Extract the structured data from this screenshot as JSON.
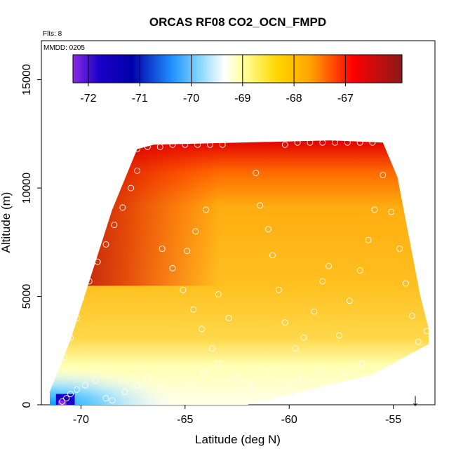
{
  "chart_data": {
    "type": "heatmap",
    "title": "ORCAS RF08 CO2_OCN_FMPD",
    "subtitle_flights": "Flts: 8",
    "subtitle_date": "MMDD: 0205",
    "xlabel": "Latitude (deg N)",
    "ylabel": "Altitude (m)",
    "xlim": [
      -71.9,
      -53.0
    ],
    "ylim": [
      0,
      16800
    ],
    "x_ticks": [
      "-70",
      "-65",
      "-60",
      "-55"
    ],
    "x_tick_values": [
      -70,
      -65,
      -60,
      -55
    ],
    "y_ticks": [
      "0",
      "5000",
      "10000",
      "15000"
    ],
    "y_tick_values": [
      0,
      5000,
      10000,
      15000
    ],
    "colorbar": {
      "range": [
        -72.3,
        -65.9
      ],
      "ticks": [
        "-72",
        "-71",
        "-70",
        "-69",
        "-68",
        "-67"
      ],
      "tick_values": [
        -72,
        -71,
        -70,
        -69,
        -68,
        -67
      ],
      "colors": [
        "#8a2be2",
        "#0000aa",
        "#1e90ff",
        "#00bfff",
        "#ffffff",
        "#ffff99",
        "#ffd700",
        "#ffa500",
        "#ff0000",
        "#8b1a1a"
      ]
    },
    "annotation": "↓",
    "field": {
      "lat_range": [
        -71.5,
        -53.3
      ],
      "alt_range": [
        0,
        12200
      ],
      "envelope_top": [
        {
          "lat": -71.5,
          "alt": 600
        },
        {
          "lat": -70.5,
          "alt": 3000
        },
        {
          "lat": -69.5,
          "alt": 6000
        },
        {
          "lat": -68.5,
          "alt": 9000
        },
        {
          "lat": -67.3,
          "alt": 11800
        },
        {
          "lat": -66.5,
          "alt": 12000
        },
        {
          "lat": -58,
          "alt": 12200
        },
        {
          "lat": -55.5,
          "alt": 12100
        },
        {
          "lat": -54.8,
          "alt": 10500
        },
        {
          "lat": -54.3,
          "alt": 8000
        },
        {
          "lat": -53.7,
          "alt": 5000
        },
        {
          "lat": -53.3,
          "alt": 3500
        }
      ],
      "envelope_bottom": [
        {
          "lat": -71.5,
          "alt": 0
        },
        {
          "lat": -62,
          "alt": 0
        },
        {
          "lat": -56,
          "alt": 1400
        },
        {
          "lat": -53.3,
          "alt": 2800
        }
      ]
    },
    "flight_points": [
      {
        "lat": -70.9,
        "alt": 150
      },
      {
        "lat": -70.7,
        "alt": 300
      },
      {
        "lat": -70.5,
        "alt": 500
      },
      {
        "lat": -70.2,
        "alt": 700
      },
      {
        "lat": -69.8,
        "alt": 900
      },
      {
        "lat": -69.3,
        "alt": 1100
      },
      {
        "lat": -68.8,
        "alt": 300
      },
      {
        "lat": -68.5,
        "alt": 200
      },
      {
        "lat": -67.9,
        "alt": 600
      },
      {
        "lat": -67.3,
        "alt": 900
      },
      {
        "lat": -66.8,
        "alt": 1200
      },
      {
        "lat": -66.2,
        "alt": 800
      },
      {
        "lat": -65.4,
        "alt": 600
      },
      {
        "lat": -64.7,
        "alt": 1000
      },
      {
        "lat": -64.1,
        "alt": 1500
      },
      {
        "lat": -63.4,
        "alt": 1900
      },
      {
        "lat": -62.6,
        "alt": 1300
      },
      {
        "lat": -61.8,
        "alt": 900
      },
      {
        "lat": -60.9,
        "alt": 1600
      },
      {
        "lat": -60.1,
        "alt": 900
      },
      {
        "lat": -59.4,
        "alt": 1200
      },
      {
        "lat": -58.6,
        "alt": 1600
      },
      {
        "lat": -57.9,
        "alt": 900
      },
      {
        "lat": -57.3,
        "alt": 1500
      },
      {
        "lat": -56.5,
        "alt": 1900
      },
      {
        "lat": -55.8,
        "alt": 1300
      },
      {
        "lat": -70.8,
        "alt": 2200
      },
      {
        "lat": -70.5,
        "alt": 3100
      },
      {
        "lat": -70.2,
        "alt": 4000
      },
      {
        "lat": -70.0,
        "alt": 4900
      },
      {
        "lat": -69.6,
        "alt": 5700
      },
      {
        "lat": -69.2,
        "alt": 6600
      },
      {
        "lat": -68.8,
        "alt": 7400
      },
      {
        "lat": -68.4,
        "alt": 8300
      },
      {
        "lat": -68.0,
        "alt": 9100
      },
      {
        "lat": -67.6,
        "alt": 10000
      },
      {
        "lat": -67.3,
        "alt": 10800
      },
      {
        "lat": -67.3,
        "alt": 11800
      },
      {
        "lat": -66.8,
        "alt": 11900
      },
      {
        "lat": -66.2,
        "alt": 11900
      },
      {
        "lat": -65.6,
        "alt": 12000
      },
      {
        "lat": -65.0,
        "alt": 12000
      },
      {
        "lat": -64.4,
        "alt": 12000
      },
      {
        "lat": -63.8,
        "alt": 12000
      },
      {
        "lat": -63.2,
        "alt": 12000
      },
      {
        "lat": -66.1,
        "alt": 7200
      },
      {
        "lat": -65.6,
        "alt": 6300
      },
      {
        "lat": -65.1,
        "alt": 5300
      },
      {
        "lat": -64.6,
        "alt": 4400
      },
      {
        "lat": -64.2,
        "alt": 3500
      },
      {
        "lat": -63.7,
        "alt": 2600
      },
      {
        "lat": -64.9,
        "alt": 7100
      },
      {
        "lat": -64.5,
        "alt": 8000
      },
      {
        "lat": -64.0,
        "alt": 9000
      },
      {
        "lat": -63.4,
        "alt": 5100
      },
      {
        "lat": -62.9,
        "alt": 4000
      },
      {
        "lat": -61.6,
        "alt": 10700
      },
      {
        "lat": -61.4,
        "alt": 9200
      },
      {
        "lat": -61.0,
        "alt": 8100
      },
      {
        "lat": -60.8,
        "alt": 6900
      },
      {
        "lat": -60.5,
        "alt": 5300
      },
      {
        "lat": -60.2,
        "alt": 3800
      },
      {
        "lat": -59.7,
        "alt": 2600
      },
      {
        "lat": -59.3,
        "alt": 3100
      },
      {
        "lat": -58.8,
        "alt": 4300
      },
      {
        "lat": -58.4,
        "alt": 5700
      },
      {
        "lat": -58.1,
        "alt": 6400
      },
      {
        "lat": -60.2,
        "alt": 12000
      },
      {
        "lat": -59.6,
        "alt": 12100
      },
      {
        "lat": -59.0,
        "alt": 12100
      },
      {
        "lat": -58.4,
        "alt": 12100
      },
      {
        "lat": -57.8,
        "alt": 12100
      },
      {
        "lat": -57.2,
        "alt": 12100
      },
      {
        "lat": -56.6,
        "alt": 12100
      },
      {
        "lat": -56.0,
        "alt": 12100
      },
      {
        "lat": -57.6,
        "alt": 3200
      },
      {
        "lat": -57.1,
        "alt": 4800
      },
      {
        "lat": -56.6,
        "alt": 6200
      },
      {
        "lat": -56.2,
        "alt": 7600
      },
      {
        "lat": -55.9,
        "alt": 9000
      },
      {
        "lat": -55.5,
        "alt": 10600
      },
      {
        "lat": -55.1,
        "alt": 8900
      },
      {
        "lat": -54.7,
        "alt": 7200
      },
      {
        "lat": -54.4,
        "alt": 5600
      },
      {
        "lat": -54.1,
        "alt": 4100
      },
      {
        "lat": -53.8,
        "alt": 2900
      },
      {
        "lat": -53.4,
        "alt": 3400
      }
    ]
  }
}
